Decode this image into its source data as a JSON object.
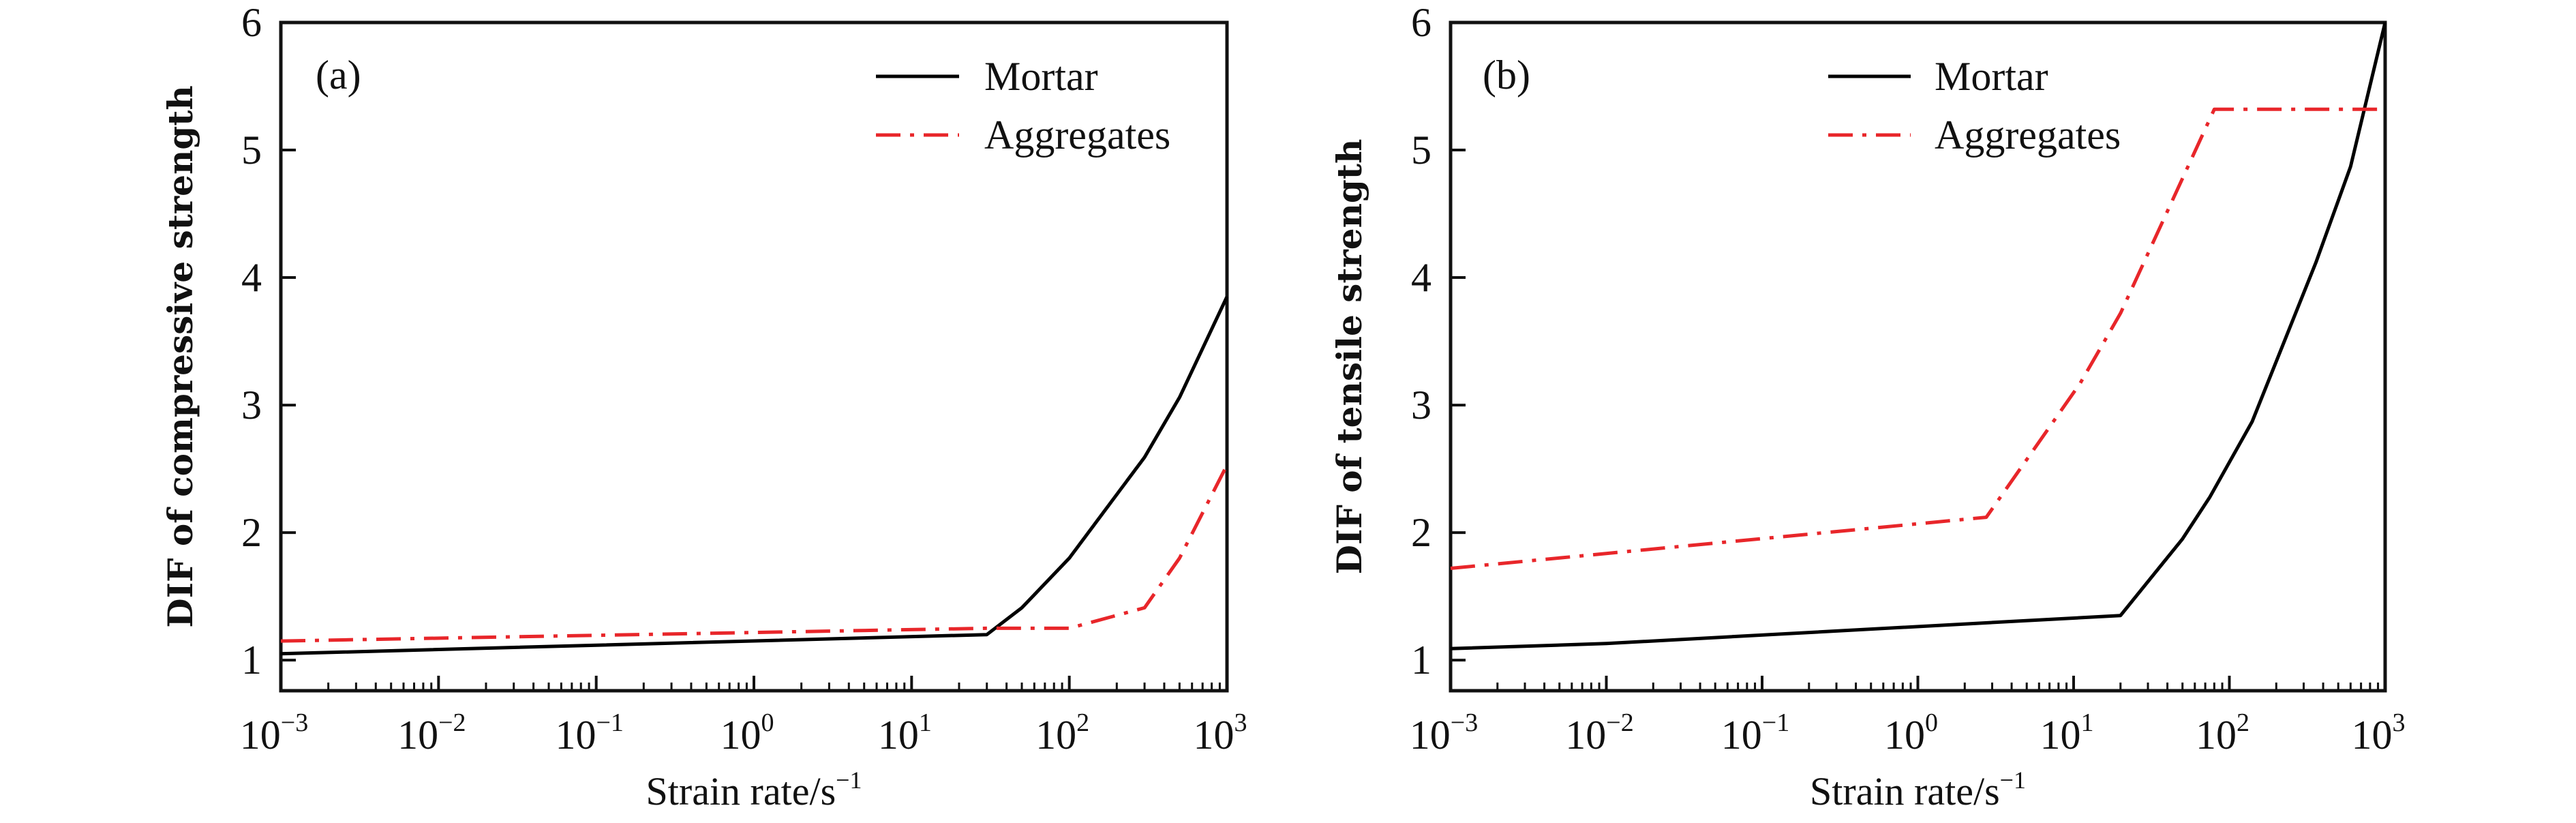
{
  "chart_data": [
    {
      "type": "line",
      "panel_label": "(a)",
      "xlabel": "Strain rate/s",
      "xlabel_sup": "−1",
      "ylabel": "DIF of compressive strength",
      "x_scale": "log",
      "xlim": [
        0.001,
        1000
      ],
      "ylim": [
        0.76,
        6
      ],
      "x_ticks": [
        {
          "base": "10",
          "exp": "−3"
        },
        {
          "base": "10",
          "exp": "−2"
        },
        {
          "base": "10",
          "exp": "−1"
        },
        {
          "base": "10",
          "exp": "0"
        },
        {
          "base": "10",
          "exp": "1"
        },
        {
          "base": "10",
          "exp": "2"
        },
        {
          "base": "10",
          "exp": "3"
        }
      ],
      "y_ticks": [
        "1",
        "2",
        "3",
        "4",
        "5",
        "6"
      ],
      "grid": false,
      "legend_position": "top-right",
      "series": [
        {
          "name": "Mortar",
          "color": "#000000",
          "style": "solid",
          "x": [
            0.001,
            30,
            50,
            100,
            300,
            500,
            1000
          ],
          "y": [
            1.05,
            1.2,
            1.41,
            1.8,
            2.59,
            3.06,
            3.85
          ]
        },
        {
          "name": "Aggregates",
          "color": "#e8262a",
          "style": "dash-dot",
          "x": [
            0.001,
            30,
            100,
            300,
            500,
            1000
          ],
          "y": [
            1.15,
            1.25,
            1.25,
            1.41,
            1.8,
            2.53
          ]
        }
      ]
    },
    {
      "type": "line",
      "panel_label": "(b)",
      "xlabel": "Strain rate/s",
      "xlabel_sup": "−1",
      "ylabel": "DIF of tensile strength",
      "x_scale": "log",
      "xlim": [
        0.001,
        1000
      ],
      "ylim": [
        0.76,
        6
      ],
      "x_ticks": [
        {
          "base": "10",
          "exp": "−3"
        },
        {
          "base": "10",
          "exp": "−2"
        },
        {
          "base": "10",
          "exp": "−1"
        },
        {
          "base": "10",
          "exp": "0"
        },
        {
          "base": "10",
          "exp": "1"
        },
        {
          "base": "10",
          "exp": "2"
        },
        {
          "base": "10",
          "exp": "3"
        }
      ],
      "y_ticks": [
        "1",
        "2",
        "3",
        "4",
        "5",
        "6"
      ],
      "grid": false,
      "legend_position": "top-center",
      "series": [
        {
          "name": "Mortar",
          "color": "#000000",
          "style": "solid",
          "x": [
            0.001,
            0.01,
            20,
            50,
            75,
            140,
            360,
            600,
            1000
          ],
          "y": [
            1.09,
            1.13,
            1.35,
            1.95,
            2.28,
            2.87,
            4.12,
            4.87,
            6.0
          ]
        },
        {
          "name": "Aggregates",
          "color": "#e8262a",
          "style": "dash-dot",
          "x": [
            0.001,
            2.75,
            11,
            20,
            80,
            900
          ],
          "y": [
            1.72,
            2.12,
            3.17,
            3.72,
            5.32,
            5.32
          ]
        }
      ]
    }
  ]
}
